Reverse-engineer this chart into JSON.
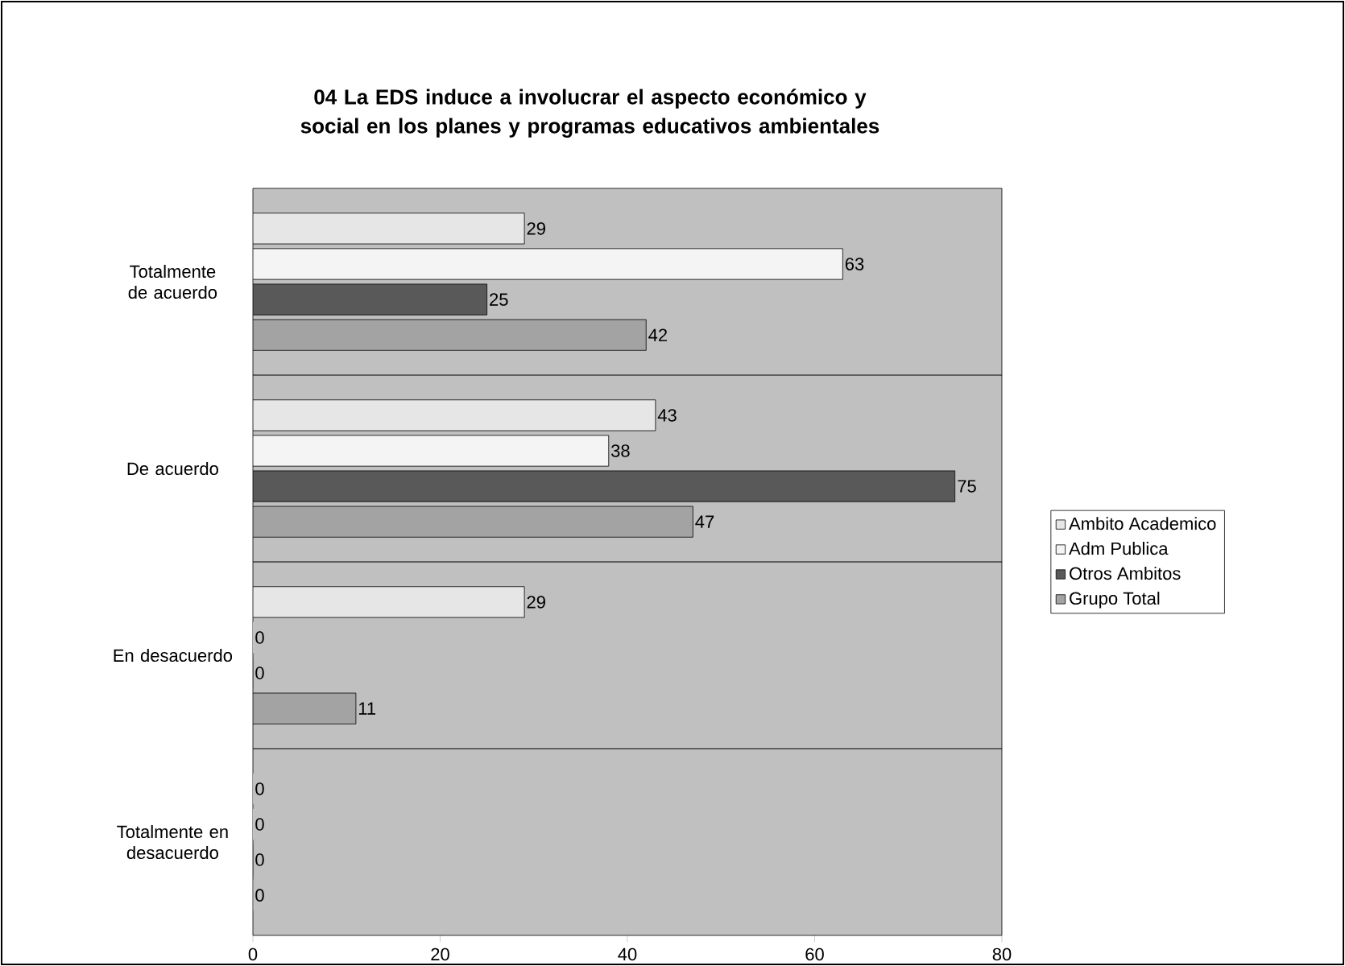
{
  "chart_data": {
    "type": "bar",
    "orientation": "horizontal",
    "title": "04   La EDS induce a involucrar el aspecto económico y social en los planes y programas educativos ambientales",
    "categories": [
      "Totalmente de acuerdo",
      "De acuerdo",
      "En desacuerdo",
      "Totalmente en desacuerdo"
    ],
    "series": [
      {
        "name": "Ambito Academico",
        "color": "#e6e6e6",
        "values": [
          29,
          43,
          29,
          0
        ]
      },
      {
        "name": "Adm Publica",
        "color": "#f4f4f4",
        "values": [
          63,
          38,
          0,
          0
        ]
      },
      {
        "name": "Otros Ambitos",
        "color": "#595959",
        "values": [
          25,
          75,
          0,
          0
        ]
      },
      {
        "name": "Grupo Total",
        "color": "#a3a3a3",
        "values": [
          42,
          47,
          11,
          0
        ]
      }
    ],
    "xlim": [
      0,
      80
    ],
    "xticks": [
      0,
      20,
      40,
      60,
      80
    ],
    "grid": "y",
    "legend": "right",
    "data_labels": true
  }
}
